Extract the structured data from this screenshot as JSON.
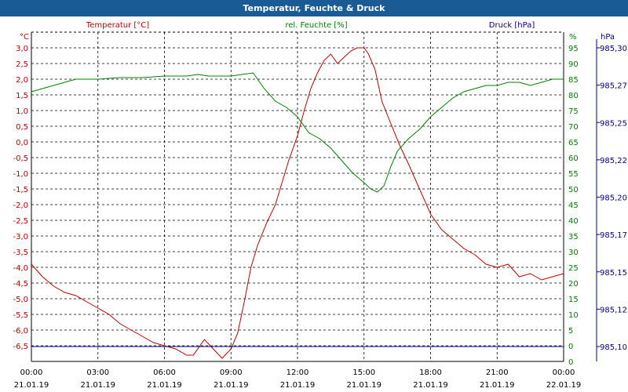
{
  "title": "Temperatur, Feuchte & Druck",
  "colors": {
    "temperature": "#c00000",
    "humidity": "#008000",
    "pressure": "#000080",
    "titlebar": "#1a5b96"
  },
  "chart_data": {
    "type": "line",
    "title": "Temperatur, Feuchte & Druck",
    "grid": true,
    "x_range": [
      "21.01.19 00:00",
      "22.01.19 00:00"
    ],
    "x_ticks": [
      {
        "time": "00:00",
        "date": "21.01.19"
      },
      {
        "time": "03:00",
        "date": "21.01.19"
      },
      {
        "time": "06:00",
        "date": "21.01.19"
      },
      {
        "time": "09:00",
        "date": "21.01.19"
      },
      {
        "time": "12:00",
        "date": "21.01.19"
      },
      {
        "time": "15:00",
        "date": "21.01.19"
      },
      {
        "time": "18:00",
        "date": "21.01.19"
      },
      {
        "time": "21:00",
        "date": "21.01.19"
      },
      {
        "time": "00:00",
        "date": "22.01.19"
      }
    ],
    "axes": {
      "left": {
        "label": "Temperatur [°C]",
        "unit": "°C",
        "range": [
          -6.5,
          3.0
        ],
        "ticks": [
          "3,0",
          "2,5",
          "2,0",
          "1,5",
          "1,0",
          "0,5",
          "0,0",
          "-0,5",
          "-1,0",
          "-1,5",
          "-2,0",
          "-2,5",
          "-3,0",
          "-3,5",
          "-4,0",
          "-4,5",
          "-5,0",
          "-5,5",
          "-6,0",
          "-6,5"
        ]
      },
      "right1": {
        "label": "rel. Feuchte [%]",
        "unit": "%",
        "range": [
          0,
          95
        ],
        "ticks": [
          "95",
          "90",
          "85",
          "80",
          "75",
          "70",
          "65",
          "60",
          "55",
          "50",
          "45",
          "40",
          "35",
          "30",
          "25",
          "20",
          "15",
          "10",
          "5",
          "0"
        ]
      },
      "right2": {
        "label": "Druck [hPa]",
        "unit": "hPa",
        "range": [
          985.1,
          985.3
        ],
        "ticks": [
          "985,30",
          "985,27",
          "985,25",
          "985,22",
          "985,20",
          "985,17",
          "985,15",
          "985,12",
          "985,10"
        ]
      }
    },
    "series": [
      {
        "name": "Temperatur [°C]",
        "axis": "left",
        "points": [
          [
            0,
            -3.9
          ],
          [
            0.5,
            -4.3
          ],
          [
            1,
            -4.6
          ],
          [
            1.5,
            -4.8
          ],
          [
            2,
            -4.9
          ],
          [
            2.5,
            -5.1
          ],
          [
            3,
            -5.3
          ],
          [
            3.5,
            -5.5
          ],
          [
            4,
            -5.8
          ],
          [
            4.5,
            -6.0
          ],
          [
            5,
            -6.2
          ],
          [
            5.5,
            -6.4
          ],
          [
            6,
            -6.5
          ],
          [
            6.5,
            -6.6
          ],
          [
            7,
            -6.8
          ],
          [
            7.3,
            -6.8
          ],
          [
            7.8,
            -6.3
          ],
          [
            8.2,
            -6.6
          ],
          [
            8.6,
            -6.9
          ],
          [
            9,
            -6.6
          ],
          [
            9.3,
            -6.1
          ],
          [
            9.6,
            -5.1
          ],
          [
            9.9,
            -4.0
          ],
          [
            10.2,
            -3.3
          ],
          [
            10.6,
            -2.6
          ],
          [
            11,
            -2.0
          ],
          [
            11.3,
            -1.3
          ],
          [
            11.6,
            -0.6
          ],
          [
            12,
            0.2
          ],
          [
            12.3,
            1.0
          ],
          [
            12.6,
            1.7
          ],
          [
            12.9,
            2.2
          ],
          [
            13.2,
            2.6
          ],
          [
            13.5,
            2.8
          ],
          [
            13.8,
            2.5
          ],
          [
            14.1,
            2.7
          ],
          [
            14.4,
            2.9
          ],
          [
            14.7,
            3.0
          ],
          [
            15,
            3.0
          ],
          [
            15.2,
            2.8
          ],
          [
            15.5,
            2.3
          ],
          [
            15.8,
            1.3
          ],
          [
            16.2,
            0.6
          ],
          [
            16.6,
            -0.1
          ],
          [
            17,
            -0.7
          ],
          [
            17.5,
            -1.5
          ],
          [
            18,
            -2.3
          ],
          [
            18.5,
            -2.8
          ],
          [
            19,
            -3.1
          ],
          [
            19.5,
            -3.4
          ],
          [
            20,
            -3.6
          ],
          [
            20.5,
            -3.9
          ],
          [
            21,
            -4.0
          ],
          [
            21.5,
            -3.9
          ],
          [
            22,
            -4.3
          ],
          [
            22.5,
            -4.2
          ],
          [
            23,
            -4.4
          ],
          [
            23.5,
            -4.3
          ],
          [
            24,
            -4.2
          ]
        ]
      },
      {
        "name": "rel. Feuchte [%]",
        "axis": "right1",
        "points": [
          [
            0,
            86
          ],
          [
            0.5,
            87
          ],
          [
            1,
            88
          ],
          [
            1.5,
            89
          ],
          [
            2,
            90
          ],
          [
            3,
            90
          ],
          [
            4,
            90.5
          ],
          [
            5,
            90.5
          ],
          [
            6,
            91
          ],
          [
            7,
            91
          ],
          [
            7.5,
            91.5
          ],
          [
            8,
            91
          ],
          [
            9,
            91
          ],
          [
            9.5,
            91.5
          ],
          [
            10,
            92
          ],
          [
            10.5,
            87
          ],
          [
            11,
            83
          ],
          [
            11.5,
            81
          ],
          [
            12,
            78
          ],
          [
            12.5,
            73
          ],
          [
            13,
            71
          ],
          [
            13.5,
            68
          ],
          [
            14,
            64
          ],
          [
            14.5,
            60
          ],
          [
            15,
            57
          ],
          [
            15.3,
            55
          ],
          [
            15.6,
            54
          ],
          [
            15.9,
            56
          ],
          [
            16.2,
            62
          ],
          [
            16.5,
            67
          ],
          [
            17,
            71
          ],
          [
            17.5,
            74
          ],
          [
            18,
            78
          ],
          [
            18.5,
            81
          ],
          [
            19,
            84
          ],
          [
            19.5,
            86
          ],
          [
            20,
            87
          ],
          [
            20.5,
            88
          ],
          [
            21,
            88
          ],
          [
            21.5,
            89
          ],
          [
            22,
            89
          ],
          [
            22.5,
            88
          ],
          [
            23,
            89
          ],
          [
            23.5,
            90
          ],
          [
            24,
            90
          ]
        ]
      },
      {
        "name": "Druck [hPa]",
        "axis": "right2",
        "points": [
          [
            0,
            985.1
          ],
          [
            24,
            985.1
          ]
        ]
      }
    ]
  }
}
